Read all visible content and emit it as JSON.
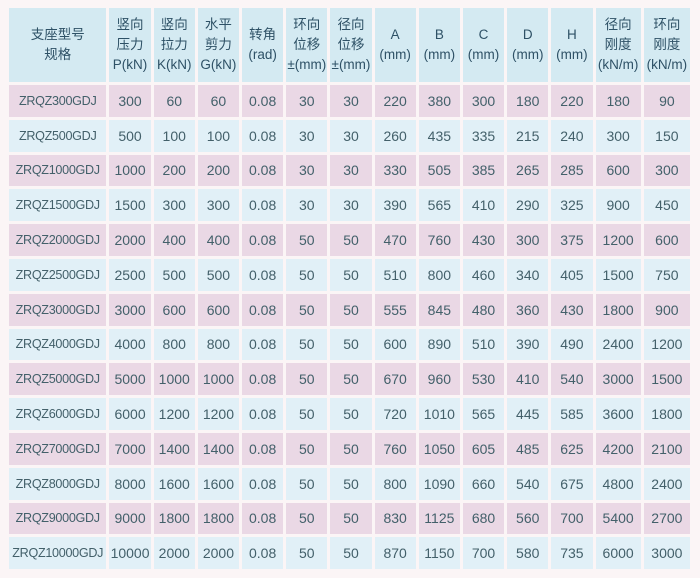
{
  "colors": {
    "page_bg": "#fbf5f6",
    "header_bg": "#d4eaf2",
    "row_pink": "#ead8e5",
    "row_blue": "#e1f0f7",
    "gridline": "#ffffff",
    "body_text": "#43606a",
    "header_text": "#2e5166"
  },
  "table": {
    "header": [
      {
        "id": "model",
        "lines": [
          "支座型号",
          "规格"
        ]
      },
      {
        "id": "vertical-pressure",
        "lines": [
          "竖向",
          "压力",
          "P(kN)"
        ]
      },
      {
        "id": "vertical-tension",
        "lines": [
          "竖向",
          "拉力",
          "K(kN)"
        ]
      },
      {
        "id": "horizontal-shear",
        "lines": [
          "水平",
          "剪力",
          "G(kN)"
        ]
      },
      {
        "id": "rotation-angle",
        "lines": [
          "转角",
          "(rad)"
        ]
      },
      {
        "id": "circumferential-displacement",
        "lines": [
          "环向",
          "位移",
          "±(mm)"
        ]
      },
      {
        "id": "radial-displacement",
        "lines": [
          "径向",
          "位移",
          "±(mm)"
        ]
      },
      {
        "id": "dim-a",
        "lines": [
          "A",
          "(mm)"
        ]
      },
      {
        "id": "dim-b",
        "lines": [
          "B",
          "(mm)"
        ]
      },
      {
        "id": "dim-c",
        "lines": [
          "C",
          "(mm)"
        ]
      },
      {
        "id": "dim-d",
        "lines": [
          "D",
          "(mm)"
        ]
      },
      {
        "id": "dim-h",
        "lines": [
          "H",
          "(mm)"
        ]
      },
      {
        "id": "radial-stiffness",
        "lines": [
          "径向",
          "刚度",
          "(kN/m)"
        ]
      },
      {
        "id": "circumferential-stiffness",
        "lines": [
          "环向",
          "刚度",
          "(kN/m)"
        ]
      }
    ],
    "rows": [
      [
        "ZRQZ300GDJ",
        "300",
        "60",
        "60",
        "0.08",
        "30",
        "30",
        "220",
        "380",
        "300",
        "180",
        "220",
        "180",
        "90"
      ],
      [
        "ZRQZ500GDJ",
        "500",
        "100",
        "100",
        "0.08",
        "30",
        "30",
        "260",
        "435",
        "335",
        "215",
        "240",
        "300",
        "150"
      ],
      [
        "ZRQZ1000GDJ",
        "1000",
        "200",
        "200",
        "0.08",
        "30",
        "30",
        "330",
        "505",
        "385",
        "265",
        "285",
        "600",
        "300"
      ],
      [
        "ZRQZ1500GDJ",
        "1500",
        "300",
        "300",
        "0.08",
        "30",
        "30",
        "390",
        "565",
        "410",
        "290",
        "325",
        "900",
        "450"
      ],
      [
        "ZRQZ2000GDJ",
        "2000",
        "400",
        "400",
        "0.08",
        "50",
        "50",
        "470",
        "760",
        "430",
        "300",
        "375",
        "1200",
        "600"
      ],
      [
        "ZRQZ2500GDJ",
        "2500",
        "500",
        "500",
        "0.08",
        "50",
        "50",
        "510",
        "800",
        "460",
        "340",
        "405",
        "1500",
        "750"
      ],
      [
        "ZRQZ3000GDJ",
        "3000",
        "600",
        "600",
        "0.08",
        "50",
        "50",
        "555",
        "845",
        "480",
        "360",
        "430",
        "1800",
        "900"
      ],
      [
        "ZRQZ4000GDJ",
        "4000",
        "800",
        "800",
        "0.08",
        "50",
        "50",
        "600",
        "890",
        "510",
        "390",
        "490",
        "2400",
        "1200"
      ],
      [
        "ZRQZ5000GDJ",
        "5000",
        "1000",
        "1000",
        "0.08",
        "50",
        "50",
        "670",
        "960",
        "530",
        "410",
        "540",
        "3000",
        "1500"
      ],
      [
        "ZRQZ6000GDJ",
        "6000",
        "1200",
        "1200",
        "0.08",
        "50",
        "50",
        "720",
        "1010",
        "565",
        "445",
        "585",
        "3600",
        "1800"
      ],
      [
        "ZRQZ7000GDJ",
        "7000",
        "1400",
        "1400",
        "0.08",
        "50",
        "50",
        "760",
        "1050",
        "605",
        "485",
        "625",
        "4200",
        "2100"
      ],
      [
        "ZRQZ8000GDJ",
        "8000",
        "1600",
        "1600",
        "0.08",
        "50",
        "50",
        "800",
        "1090",
        "660",
        "540",
        "675",
        "4800",
        "2400"
      ],
      [
        "ZRQZ9000GDJ",
        "9000",
        "1800",
        "1800",
        "0.08",
        "50",
        "50",
        "830",
        "1125",
        "680",
        "560",
        "700",
        "5400",
        "2700"
      ],
      [
        "ZRQZ10000GDJ",
        "10000",
        "2000",
        "2000",
        "0.08",
        "50",
        "50",
        "870",
        "1150",
        "700",
        "580",
        "735",
        "6000",
        "3000"
      ]
    ]
  }
}
